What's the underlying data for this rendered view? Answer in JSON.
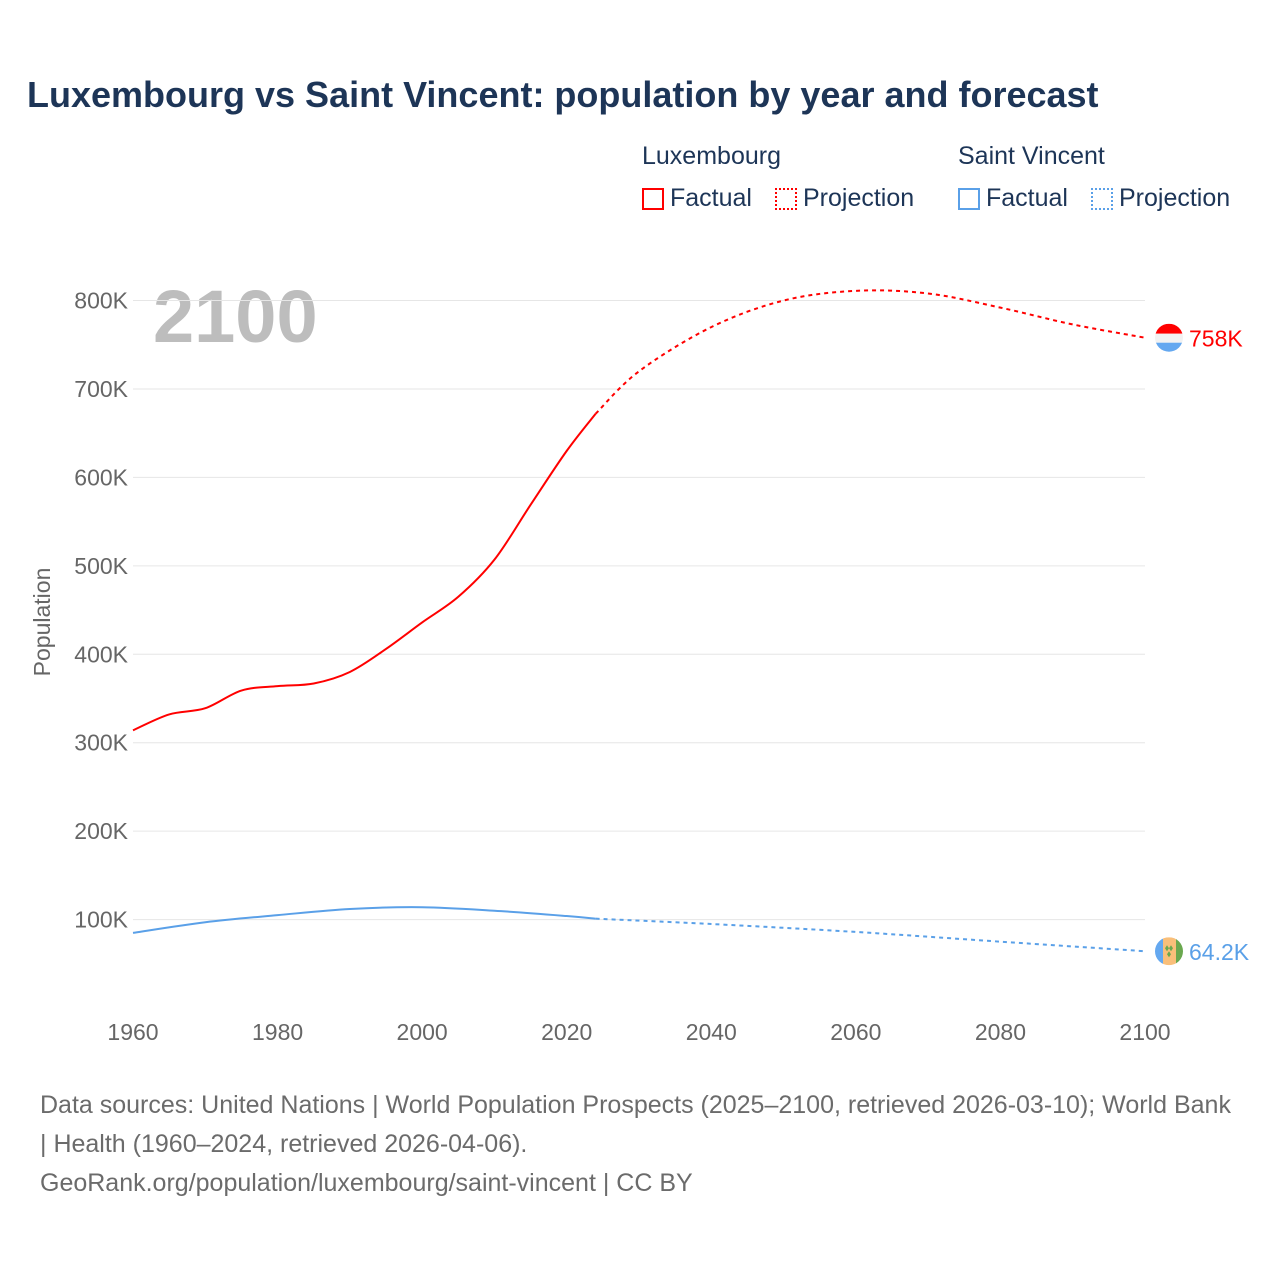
{
  "title": "Luxembourg vs Saint Vincent: population by year and forecast",
  "legend": {
    "groups": [
      {
        "name": "Luxembourg",
        "color": "#ff0000",
        "factual": "Factual",
        "projection": "Projection"
      },
      {
        "name": "Saint Vincent",
        "color": "#5aa0e8",
        "factual": "Factual",
        "projection": "Projection"
      }
    ]
  },
  "footer": {
    "sources": "Data sources: United Nations | World Population Prospects (2025–2100, retrieved 2026-03-10); World Bank | Health (1960–2024, retrieved 2026-04-06).",
    "link": "GeoRank.org/population/luxembourg/saint-vincent | CC BY"
  },
  "chart_data": {
    "type": "line",
    "title": "Luxembourg vs Saint Vincent: population by year and forecast",
    "xlabel": "",
    "ylabel": "Population",
    "xlim": [
      1960,
      2100
    ],
    "ylim": [
      0,
      800000
    ],
    "year_watermark": "2100",
    "x_ticks": [
      1960,
      1980,
      2000,
      2020,
      2040,
      2060,
      2080,
      2100
    ],
    "x_tick_labels": [
      "1960",
      "1980",
      "2000",
      "2020",
      "2040",
      "2060",
      "2080",
      "2100"
    ],
    "y_ticks": [
      100000,
      200000,
      300000,
      400000,
      500000,
      600000,
      700000,
      800000
    ],
    "y_tick_labels": [
      "100K",
      "200K",
      "300K",
      "400K",
      "500K",
      "600K",
      "700K",
      "800K"
    ],
    "grid": true,
    "legend_position": "top-right",
    "series": [
      {
        "name": "Luxembourg",
        "color": "#ff0000",
        "end_label": "758K",
        "factual": {
          "x": [
            1960,
            1965,
            1970,
            1975,
            1980,
            1985,
            1990,
            1995,
            2000,
            2005,
            2010,
            2015,
            2020,
            2024
          ],
          "y": [
            314000,
            332000,
            339000,
            359000,
            364000,
            367000,
            380000,
            406000,
            436000,
            465000,
            507000,
            569000,
            630000,
            672000
          ]
        },
        "projection": {
          "x": [
            2024,
            2030,
            2040,
            2050,
            2060,
            2070,
            2080,
            2090,
            2100
          ],
          "y": [
            672000,
            720000,
            770000,
            800000,
            811000,
            808000,
            792000,
            773000,
            758000
          ]
        }
      },
      {
        "name": "Saint Vincent",
        "color": "#5aa0e8",
        "end_label": "64.2K",
        "factual": {
          "x": [
            1960,
            1970,
            1980,
            1990,
            2000,
            2010,
            2020,
            2024
          ],
          "y": [
            85000,
            97000,
            105000,
            112000,
            114000,
            110000,
            104000,
            101000
          ]
        },
        "projection": {
          "x": [
            2024,
            2040,
            2060,
            2080,
            2100
          ],
          "y": [
            101000,
            95000,
            86000,
            75000,
            64200
          ]
        }
      }
    ]
  }
}
